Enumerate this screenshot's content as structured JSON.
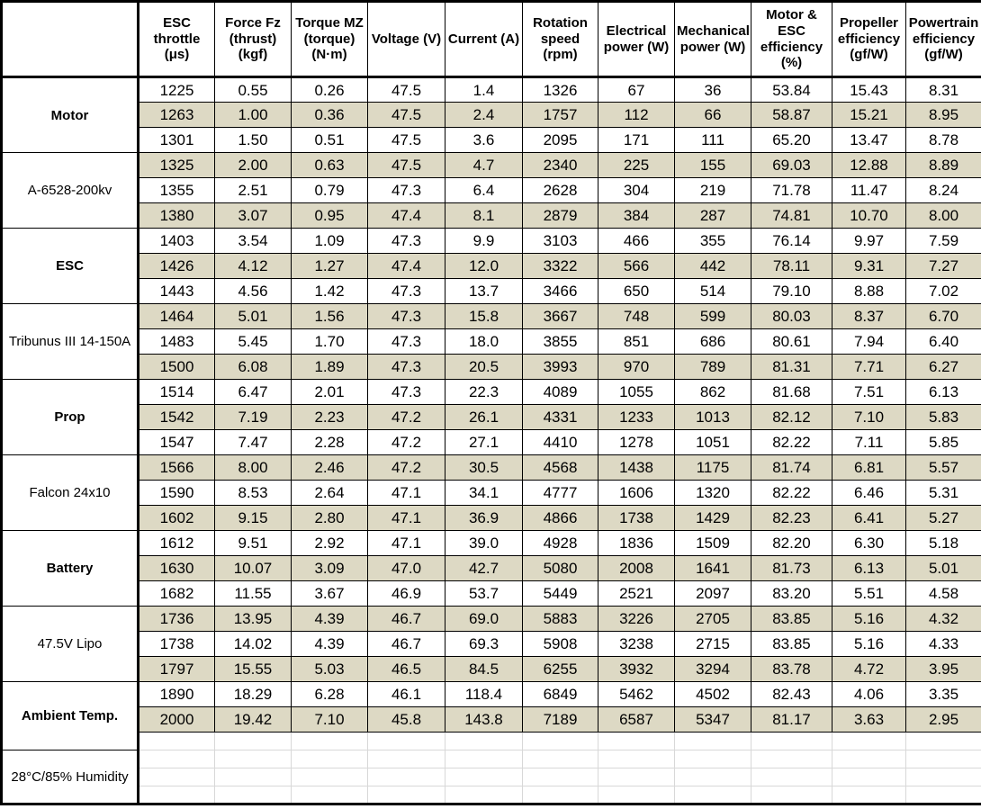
{
  "chart_data": {
    "type": "table",
    "title": "",
    "columns": [
      "ESC\nthrottle\n(μs)",
      "Force Fz\n(thrust)\n(kgf)",
      "Torque MZ\n(torque)\n(N·m)",
      "Voltage (V)",
      "Current (A)",
      "Rotation\nspeed\n(rpm)",
      "Electrical\npower (W)",
      "Mechanical\npower (W)",
      "Motor &\nESC\nefficiency\n(%)",
      "Propeller\nefficiency\n(gf/W)",
      "Powertrain\nefficiency\n(gf/W)"
    ],
    "row_group_labels": [
      {
        "label": "Motor",
        "bold": true
      },
      {
        "label": "A-6528-200kv",
        "bold": false
      },
      {
        "label": "ESC",
        "bold": true
      },
      {
        "label": "Tribunus III 14-150A",
        "bold": false
      },
      {
        "label": "Prop",
        "bold": true
      },
      {
        "label": "Falcon 24x10",
        "bold": false
      },
      {
        "label": "Battery",
        "bold": true
      },
      {
        "label": "47.5V Lipo",
        "bold": false
      },
      {
        "label": "Ambient Temp.",
        "bold": true
      },
      {
        "label": "28°C/85% Humidity",
        "bold": false
      }
    ],
    "rows": [
      [
        "1225",
        "0.55",
        "0.26",
        "47.5",
        "1.4",
        "1326",
        "67",
        "36",
        "53.84",
        "15.43",
        "8.31"
      ],
      [
        "1263",
        "1.00",
        "0.36",
        "47.5",
        "2.4",
        "1757",
        "112",
        "66",
        "58.87",
        "15.21",
        "8.95"
      ],
      [
        "1301",
        "1.50",
        "0.51",
        "47.5",
        "3.6",
        "2095",
        "171",
        "111",
        "65.20",
        "13.47",
        "8.78"
      ],
      [
        "1325",
        "2.00",
        "0.63",
        "47.5",
        "4.7",
        "2340",
        "225",
        "155",
        "69.03",
        "12.88",
        "8.89"
      ],
      [
        "1355",
        "2.51",
        "0.79",
        "47.3",
        "6.4",
        "2628",
        "304",
        "219",
        "71.78",
        "11.47",
        "8.24"
      ],
      [
        "1380",
        "3.07",
        "0.95",
        "47.4",
        "8.1",
        "2879",
        "384",
        "287",
        "74.81",
        "10.70",
        "8.00"
      ],
      [
        "1403",
        "3.54",
        "1.09",
        "47.3",
        "9.9",
        "3103",
        "466",
        "355",
        "76.14",
        "9.97",
        "7.59"
      ],
      [
        "1426",
        "4.12",
        "1.27",
        "47.4",
        "12.0",
        "3322",
        "566",
        "442",
        "78.11",
        "9.31",
        "7.27"
      ],
      [
        "1443",
        "4.56",
        "1.42",
        "47.3",
        "13.7",
        "3466",
        "650",
        "514",
        "79.10",
        "8.88",
        "7.02"
      ],
      [
        "1464",
        "5.01",
        "1.56",
        "47.3",
        "15.8",
        "3667",
        "748",
        "599",
        "80.03",
        "8.37",
        "6.70"
      ],
      [
        "1483",
        "5.45",
        "1.70",
        "47.3",
        "18.0",
        "3855",
        "851",
        "686",
        "80.61",
        "7.94",
        "6.40"
      ],
      [
        "1500",
        "6.08",
        "1.89",
        "47.3",
        "20.5",
        "3993",
        "970",
        "789",
        "81.31",
        "7.71",
        "6.27"
      ],
      [
        "1514",
        "6.47",
        "2.01",
        "47.3",
        "22.3",
        "4089",
        "1055",
        "862",
        "81.68",
        "7.51",
        "6.13"
      ],
      [
        "1542",
        "7.19",
        "2.23",
        "47.2",
        "26.1",
        "4331",
        "1233",
        "1013",
        "82.12",
        "7.10",
        "5.83"
      ],
      [
        "1547",
        "7.47",
        "2.28",
        "47.2",
        "27.1",
        "4410",
        "1278",
        "1051",
        "82.22",
        "7.11",
        "5.85"
      ],
      [
        "1566",
        "8.00",
        "2.46",
        "47.2",
        "30.5",
        "4568",
        "1438",
        "1175",
        "81.74",
        "6.81",
        "5.57"
      ],
      [
        "1590",
        "8.53",
        "2.64",
        "47.1",
        "34.1",
        "4777",
        "1606",
        "1320",
        "82.22",
        "6.46",
        "5.31"
      ],
      [
        "1602",
        "9.15",
        "2.80",
        "47.1",
        "36.9",
        "4866",
        "1738",
        "1429",
        "82.23",
        "6.41",
        "5.27"
      ],
      [
        "1612",
        "9.51",
        "2.92",
        "47.1",
        "39.0",
        "4928",
        "1836",
        "1509",
        "82.20",
        "6.30",
        "5.18"
      ],
      [
        "1630",
        "10.07",
        "3.09",
        "47.0",
        "42.7",
        "5080",
        "2008",
        "1641",
        "81.73",
        "6.13",
        "5.01"
      ],
      [
        "1682",
        "11.55",
        "3.67",
        "46.9",
        "53.7",
        "5449",
        "2521",
        "2097",
        "83.20",
        "5.51",
        "4.58"
      ],
      [
        "1736",
        "13.95",
        "4.39",
        "46.7",
        "69.0",
        "5883",
        "3226",
        "2705",
        "83.85",
        "5.16",
        "4.32"
      ],
      [
        "1738",
        "14.02",
        "4.39",
        "46.7",
        "69.3",
        "5908",
        "3238",
        "2715",
        "83.85",
        "5.16",
        "4.33"
      ],
      [
        "1797",
        "15.55",
        "5.03",
        "46.5",
        "84.5",
        "6255",
        "3932",
        "3294",
        "83.78",
        "4.72",
        "3.95"
      ],
      [
        "1890",
        "18.29",
        "6.28",
        "46.1",
        "118.4",
        "6849",
        "5462",
        "4502",
        "82.43",
        "4.06",
        "3.35"
      ],
      [
        "2000",
        "19.42",
        "7.10",
        "45.8",
        "143.8",
        "7189",
        "6587",
        "5347",
        "81.17",
        "3.63",
        "2.95"
      ]
    ],
    "empty_trailing_rows": 4,
    "layout": {
      "stripe_pattern": "every second data row shaded, label column always white",
      "grid": "black thin gridlines in data area, faint gray gridlines in trailing empty rows"
    },
    "colors": {
      "row_stripe": "#ddd9c4",
      "border": "#000000",
      "faint_gridline": "#d8d8d8",
      "background": "#ffffff",
      "text": "#000000"
    }
  }
}
